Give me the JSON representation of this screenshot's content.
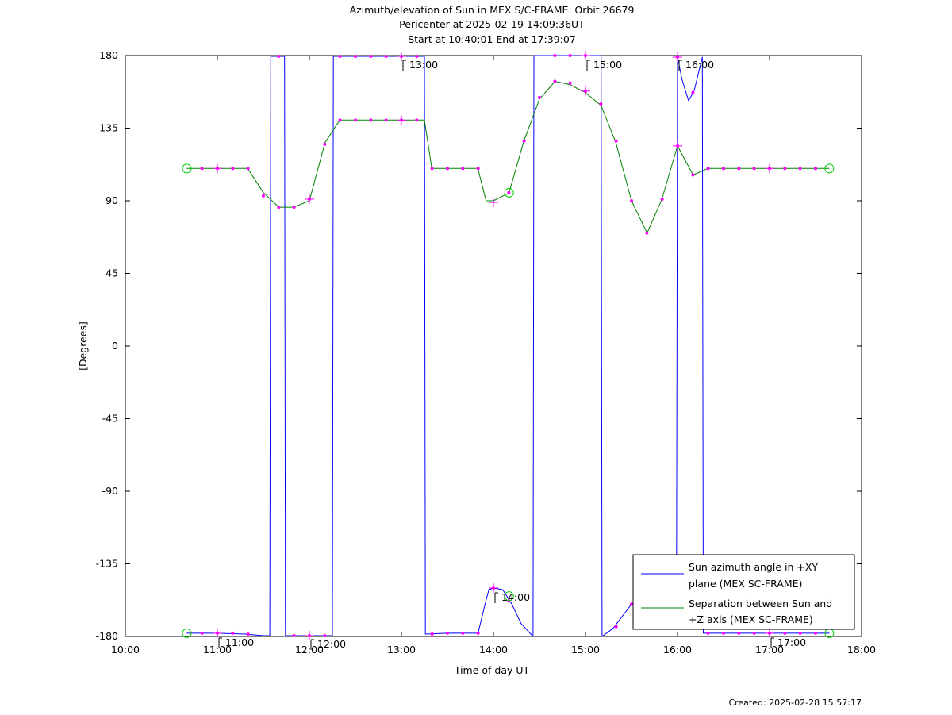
{
  "chart_data": {
    "type": "line",
    "title": [
      "Azimuth/elevation of Sun in MEX S/C-FRAME.  Orbit 26679",
      "Pericenter at 2025-02-19 14:09:36UT",
      "Start at 10:40:01 End at 17:39:07"
    ],
    "xlabel": "Time of day UT",
    "ylabel": "[Degrees]",
    "xlim_hours": [
      10,
      18
    ],
    "ylim": [
      -180,
      180
    ],
    "x_ticks": [
      {
        "v": 10,
        "label": "10:00"
      },
      {
        "v": 11,
        "label": "11:00"
      },
      {
        "v": 12,
        "label": "12:00"
      },
      {
        "v": 13,
        "label": "13:00"
      },
      {
        "v": 14,
        "label": "14:00"
      },
      {
        "v": 15,
        "label": "15:00"
      },
      {
        "v": 16,
        "label": "16:00"
      },
      {
        "v": 17,
        "label": "17:00"
      },
      {
        "v": 18,
        "label": "18:00"
      }
    ],
    "y_ticks": [
      {
        "v": 180,
        "label": "180"
      },
      {
        "v": 135,
        "label": "135"
      },
      {
        "v": 90,
        "label": "90"
      },
      {
        "v": 45,
        "label": "45"
      },
      {
        "v": 0,
        "label": "0"
      },
      {
        "v": -45,
        "label": "-45"
      },
      {
        "v": -90,
        "label": "-90"
      },
      {
        "v": -135,
        "label": "-135"
      },
      {
        "v": -180,
        "label": "-180"
      }
    ],
    "hour_annotations": [
      {
        "x": 11.0,
        "y": -178.5,
        "label": "11:00"
      },
      {
        "x": 12.0,
        "y": -179.5,
        "label": "12:00"
      },
      {
        "x": 13.0,
        "y": 179.5,
        "label": "13:00"
      },
      {
        "x": 14.0,
        "y": -150.5,
        "label": "14:00"
      },
      {
        "x": 15.0,
        "y": 179.5,
        "label": "15:00"
      },
      {
        "x": 16.0,
        "y": 179.5,
        "label": "16:00"
      },
      {
        "x": 17.0,
        "y": -178.5,
        "label": "17:00"
      }
    ],
    "series": [
      {
        "name": "Sun azimuth angle in +XY plane (MEX SC-FRAME)",
        "legend_lines": [
          "Sun azimuth angle in +XY",
          "plane (MEX SC-FRAME)"
        ],
        "color": "#0000ff",
        "x": [
          10.667,
          11.0,
          11.3,
          11.5,
          11.57,
          11.58,
          11.73,
          11.74,
          12.25,
          12.26,
          13.25,
          13.26,
          13.5,
          13.833,
          13.9,
          13.95,
          14.0,
          14.1,
          14.2,
          14.3,
          14.43,
          14.44,
          15.17,
          15.18,
          15.3,
          15.5,
          15.7,
          15.9,
          15.99,
          16.0,
          16.05,
          16.12,
          16.18,
          16.27,
          16.28,
          17.0,
          17.65
        ],
        "y": [
          -178,
          -178,
          -178.5,
          -179.5,
          -179.5,
          179.5,
          179.5,
          -179.5,
          -179.5,
          179.5,
          179.5,
          -178.5,
          -178,
          -178,
          -162,
          -151,
          -150,
          -151,
          -160,
          -172,
          -180,
          180,
          180,
          -180,
          -175,
          -160,
          -150,
          -140,
          -137,
          179,
          165,
          152,
          158,
          179,
          -178,
          -178,
          -178
        ]
      },
      {
        "name": "Separation between Sun and +Z axis (MEX SC-FRAME)",
        "legend_lines": [
          "Separation between Sun and",
          "+Z axis (MEX SC-FRAME)"
        ],
        "color": "#008000",
        "x": [
          10.667,
          11.0,
          11.33,
          11.5,
          11.67,
          11.83,
          12.0,
          12.17,
          12.33,
          13.25,
          13.33,
          13.83,
          13.92,
          14.0,
          14.17,
          14.33,
          14.5,
          14.67,
          14.83,
          15.0,
          15.17,
          15.33,
          15.5,
          15.67,
          15.83,
          16.0,
          16.17,
          16.33,
          17.0,
          17.65
        ],
        "y": [
          110,
          110,
          110,
          95,
          86,
          86,
          90,
          126,
          140,
          140,
          110,
          110,
          90,
          90,
          95,
          127,
          153,
          164,
          162,
          157,
          149,
          126,
          90,
          70,
          91,
          124,
          106,
          110,
          110,
          110
        ]
      }
    ],
    "markers": {
      "color": "#ff00ff",
      "dots": [
        [
          10.833,
          110
        ],
        [
          11.0,
          110
        ],
        [
          11.167,
          110
        ],
        [
          11.333,
          110
        ],
        [
          11.5,
          93
        ],
        [
          11.667,
          86
        ],
        [
          11.833,
          86
        ],
        [
          12.0,
          91
        ],
        [
          12.167,
          125
        ],
        [
          12.333,
          140
        ],
        [
          12.5,
          140
        ],
        [
          12.667,
          140
        ],
        [
          12.833,
          140
        ],
        [
          13.0,
          140
        ],
        [
          13.167,
          140
        ],
        [
          13.333,
          110
        ],
        [
          13.5,
          110
        ],
        [
          13.667,
          110
        ],
        [
          13.833,
          110
        ],
        [
          14.167,
          95
        ],
        [
          14.333,
          127
        ],
        [
          14.5,
          154
        ],
        [
          14.667,
          164
        ],
        [
          14.833,
          163
        ],
        [
          15.0,
          158
        ],
        [
          15.167,
          150
        ],
        [
          15.333,
          127
        ],
        [
          15.5,
          90
        ],
        [
          15.667,
          70
        ],
        [
          15.833,
          91
        ],
        [
          16.0,
          124
        ],
        [
          16.167,
          106
        ],
        [
          16.333,
          110
        ],
        [
          16.5,
          110
        ],
        [
          16.667,
          110
        ],
        [
          16.833,
          110
        ],
        [
          17.0,
          110
        ],
        [
          17.167,
          110
        ],
        [
          17.333,
          110
        ],
        [
          17.5,
          110
        ],
        [
          10.833,
          -178
        ],
        [
          11.0,
          -178
        ],
        [
          11.167,
          -178
        ],
        [
          11.333,
          -178.5
        ],
        [
          11.833,
          -179.5
        ],
        [
          12.0,
          -179.5
        ],
        [
          12.167,
          -179.5
        ],
        [
          11.667,
          179.5
        ],
        [
          12.333,
          179.5
        ],
        [
          12.5,
          179.5
        ],
        [
          12.667,
          179.5
        ],
        [
          12.833,
          179.5
        ],
        [
          13.0,
          179.5
        ],
        [
          13.167,
          179.5
        ],
        [
          13.333,
          -178.5
        ],
        [
          13.5,
          -178
        ],
        [
          13.667,
          -178
        ],
        [
          13.833,
          -178
        ],
        [
          14.0,
          -150
        ],
        [
          14.167,
          -158
        ],
        [
          14.667,
          180
        ],
        [
          14.833,
          180
        ],
        [
          15.0,
          180
        ],
        [
          15.333,
          -174
        ],
        [
          15.5,
          -160
        ],
        [
          16.0,
          179
        ],
        [
          16.167,
          157
        ],
        [
          16.333,
          -178
        ],
        [
          16.5,
          -178
        ],
        [
          16.667,
          -178
        ],
        [
          16.833,
          -178
        ],
        [
          17.0,
          -178
        ],
        [
          17.167,
          -178
        ],
        [
          17.333,
          -178
        ],
        [
          17.5,
          -178
        ]
      ],
      "crosses": [
        [
          11.0,
          110
        ],
        [
          12.0,
          91
        ],
        [
          13.0,
          140
        ],
        [
          14.0,
          89
        ],
        [
          15.0,
          158
        ],
        [
          16.0,
          124
        ],
        [
          17.0,
          110
        ],
        [
          11.0,
          -178
        ],
        [
          12.0,
          -179.5
        ],
        [
          13.0,
          179.5
        ],
        [
          14.0,
          -150
        ],
        [
          15.0,
          180
        ],
        [
          16.0,
          179
        ],
        [
          17.0,
          -178
        ]
      ]
    },
    "circle_markers": {
      "color": "#00cc00",
      "points": [
        [
          10.667,
          110
        ],
        [
          17.65,
          110
        ],
        [
          14.17,
          95
        ],
        [
          10.667,
          -178
        ],
        [
          17.65,
          -178
        ],
        [
          14.17,
          -155
        ]
      ]
    },
    "legend_position": "bottom-right",
    "grid": false
  },
  "footer": {
    "created": "Created: 2025-02-28 15:57:17"
  }
}
